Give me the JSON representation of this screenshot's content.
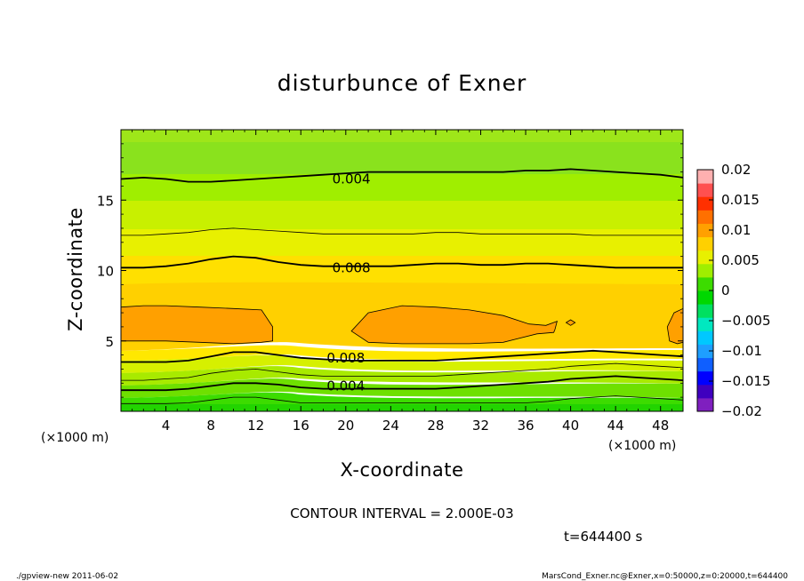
{
  "chart_data": {
    "type": "heatmap",
    "title": "disturbunce of Exner",
    "xlabel": "X-coordinate",
    "ylabel": "Z-coordinate",
    "x_unit_left": "(×1000 m)",
    "x_unit_right": "(×1000 m)",
    "xlim": [
      0,
      50
    ],
    "ylim": [
      0,
      20
    ],
    "x_ticks": [
      4,
      8,
      12,
      16,
      20,
      24,
      28,
      32,
      36,
      40,
      44,
      48
    ],
    "x_tick_labels": [
      "4",
      "8",
      "12",
      "16",
      "20",
      "24",
      "28",
      "32",
      "36",
      "40",
      "44",
      "48"
    ],
    "y_ticks": [
      5,
      10,
      15
    ],
    "y_tick_labels": [
      "5",
      "10",
      "15"
    ],
    "colorbar": {
      "range": [
        -0.02,
        0.02
      ],
      "tick_values": [
        0.02,
        0.015,
        0.01,
        0.005,
        0,
        -0.005,
        -0.01,
        -0.015,
        -0.02
      ],
      "tick_labels": [
        "0.02",
        "0.015",
        "0.01",
        "0.005",
        "0",
        "−0.005",
        "−0.01",
        "−0.015",
        "−0.02"
      ],
      "colors": [
        "#7f1fbf",
        "#3f00bf",
        "#0000ff",
        "#0f5fff",
        "#1e9fff",
        "#00c8ff",
        "#00e8c0",
        "#00e060",
        "#00d800",
        "#3cdc00",
        "#a0ee00",
        "#e8f000",
        "#ffd000",
        "#ffa000",
        "#ff7000",
        "#ff3000",
        "#ff5050",
        "#ffb0b0"
      ]
    },
    "contour_interval": 0.002,
    "contour_labels": [
      {
        "text": "0.004",
        "x": 20.5,
        "z": 16.5
      },
      {
        "text": "0.008",
        "x": 20.5,
        "z": 10.2
      },
      {
        "text": "0.008",
        "x": 20.0,
        "z": 3.8
      },
      {
        "text": "0.004",
        "x": 20.0,
        "z": 1.8
      }
    ],
    "contour_lines": [
      {
        "level": 0.002,
        "z": [
          0.55,
          0.55,
          0.55,
          0.6,
          0.8,
          1.0,
          1.0,
          0.8,
          0.6,
          0.6,
          0.6,
          0.6,
          0.6,
          0.6,
          0.6,
          0.6,
          0.6,
          0.6,
          0.6,
          0.7,
          0.9,
          1.0,
          1.1,
          1.0,
          0.9,
          0.8
        ]
      },
      {
        "level": 0.004,
        "z": [
          1.5,
          1.5,
          1.5,
          1.6,
          1.8,
          2.0,
          2.0,
          1.9,
          1.7,
          1.6,
          1.6,
          1.6,
          1.6,
          1.6,
          1.6,
          1.7,
          1.8,
          1.9,
          2.0,
          2.1,
          2.3,
          2.4,
          2.5,
          2.4,
          2.3,
          2.2
        ]
      },
      {
        "level": 0.006,
        "z": [
          2.2,
          2.2,
          2.3,
          2.4,
          2.7,
          2.9,
          3.0,
          2.8,
          2.6,
          2.5,
          2.5,
          2.5,
          2.5,
          2.5,
          2.5,
          2.6,
          2.7,
          2.8,
          2.9,
          3.0,
          3.2,
          3.3,
          3.4,
          3.3,
          3.2,
          3.1
        ]
      },
      {
        "level": 0.008,
        "z": [
          3.5,
          3.5,
          3.5,
          3.6,
          3.9,
          4.2,
          4.2,
          4.0,
          3.8,
          3.7,
          3.6,
          3.6,
          3.6,
          3.6,
          3.6,
          3.7,
          3.8,
          3.9,
          4.0,
          4.1,
          4.2,
          4.3,
          4.2,
          4.1,
          4.0,
          3.9
        ]
      },
      {
        "level": 0.008,
        "z": [
          10.2,
          10.2,
          10.3,
          10.5,
          10.8,
          11.0,
          10.9,
          10.6,
          10.4,
          10.3,
          10.3,
          10.3,
          10.3,
          10.4,
          10.5,
          10.5,
          10.4,
          10.4,
          10.5,
          10.5,
          10.4,
          10.3,
          10.2,
          10.2,
          10.2,
          10.2
        ]
      },
      {
        "level": 0.006,
        "z": [
          12.5,
          12.5,
          12.6,
          12.7,
          12.9,
          13.0,
          12.9,
          12.8,
          12.7,
          12.6,
          12.6,
          12.6,
          12.6,
          12.6,
          12.7,
          12.7,
          12.6,
          12.6,
          12.6,
          12.6,
          12.6,
          12.5,
          12.5,
          12.5,
          12.5,
          12.5
        ]
      },
      {
        "level": 0.004,
        "z": [
          16.5,
          16.6,
          16.5,
          16.3,
          16.3,
          16.4,
          16.5,
          16.6,
          16.7,
          16.8,
          16.9,
          17.0,
          17.0,
          17.0,
          17.0,
          17.0,
          17.0,
          17.0,
          17.1,
          17.1,
          17.2,
          17.1,
          17.0,
          16.9,
          16.8,
          16.6
        ]
      }
    ],
    "closed_contours": [
      {
        "level": 0.01,
        "x": [
          0.0,
          2,
          4,
          7,
          10,
          12.5,
          13.5,
          13.5,
          12.5,
          10,
          7,
          4,
          2,
          0.0
        ],
        "z": [
          7.4,
          7.5,
          7.5,
          7.4,
          7.3,
          7.2,
          6.0,
          5.0,
          4.9,
          4.8,
          4.9,
          5.0,
          5.0,
          5.0
        ]
      },
      {
        "level": 0.01,
        "x": [
          20.5,
          22,
          25,
          28,
          31,
          34,
          36.3,
          37.8,
          38.8,
          38.6,
          38.5,
          37.0,
          34,
          31,
          28,
          25,
          22,
          20.5
        ],
        "z": [
          5.7,
          7.0,
          7.5,
          7.4,
          7.2,
          6.8,
          6.2,
          6.1,
          6.4,
          5.8,
          5.6,
          5.5,
          4.9,
          4.8,
          4.8,
          4.8,
          4.9,
          5.7
        ]
      },
      {
        "level": 0.01,
        "x": [
          39.6,
          40.0,
          40.4,
          40.0,
          39.6
        ],
        "z": [
          6.3,
          6.5,
          6.3,
          6.1,
          6.3
        ]
      },
      {
        "level": 0.01,
        "x": [
          50.0,
          49.2,
          48.6,
          48.8,
          49.5,
          50.0
        ],
        "z": [
          7.3,
          7.0,
          6.0,
          5.0,
          4.8,
          4.9
        ]
      }
    ],
    "info": {
      "contour_interval_text": "CONTOUR INTERVAL = 2.000E-03",
      "time_text": "t=644400 s",
      "footer_left": "./gpview-new   2011-06-02",
      "footer_right": "MarsCond_Exner.nc@Exner,x=0:50000,z=0:20000,t=644400"
    }
  }
}
